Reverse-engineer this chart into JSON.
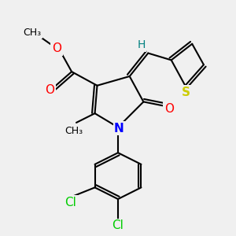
{
  "bg_color": "#f0f0f0",
  "atom_colors": {
    "O": "#ff0000",
    "N": "#0000ff",
    "S": "#cccc00",
    "Cl": "#00cc00",
    "C": "#000000",
    "H": "#008080"
  },
  "font_size_atom": 11,
  "font_size_small": 9,
  "title": ""
}
